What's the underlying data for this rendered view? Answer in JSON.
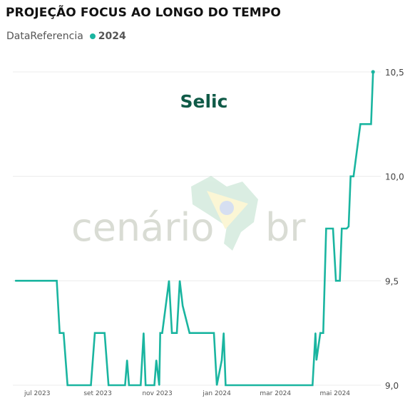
{
  "chart_data": {
    "type": "line",
    "title": "PROJEÇÃO FOCUS AO LONGO DO TEMPO",
    "legend": {
      "field": "DataReferencia",
      "position": "top-left"
    },
    "annotation": "Selic",
    "ylim": [
      9.0,
      10.5
    ],
    "y_ticks": [
      "9,0",
      "9,5",
      "10,0",
      "10,5"
    ],
    "x_ticks": [
      "jul 2023",
      "set 2023",
      "nov 2023",
      "jan 2024",
      "mar 2024",
      "mai 2024"
    ],
    "xlim": [
      "2023-06-06",
      "2024-06-14"
    ],
    "grid": true,
    "series": [
      {
        "name": "2024",
        "color": "#1ab5a0",
        "x": [
          "2023-06-09",
          "2023-07-21",
          "2023-07-24",
          "2023-07-28",
          "2023-08-01",
          "2023-08-25",
          "2023-08-29",
          "2023-09-08",
          "2023-09-12",
          "2023-09-29",
          "2023-10-01",
          "2023-10-03",
          "2023-10-06",
          "2023-10-15",
          "2023-10-18",
          "2023-10-20",
          "2023-10-29",
          "2023-10-31",
          "2023-11-03",
          "2023-11-04",
          "2023-11-06",
          "2023-11-13",
          "2023-11-16",
          "2023-11-21",
          "2023-11-24",
          "2023-11-27",
          "2023-12-04",
          "2023-12-05",
          "2023-12-08",
          "2023-12-11",
          "2023-12-15",
          "2023-12-18",
          "2023-12-20",
          "2023-12-29",
          "2024-01-01",
          "2024-01-06",
          "2024-01-08",
          "2024-01-10",
          "2024-01-14",
          "2024-01-17",
          "2024-04-08",
          "2024-04-11",
          "2024-04-12",
          "2024-04-16",
          "2024-04-19",
          "2024-04-22",
          "2024-04-29",
          "2024-05-02",
          "2024-05-06",
          "2024-05-08",
          "2024-05-10",
          "2024-05-13",
          "2024-05-15",
          "2024-05-17",
          "2024-05-20",
          "2024-05-27",
          "2024-06-07",
          "2024-06-09"
        ],
        "values": [
          9.5,
          9.5,
          9.25,
          9.25,
          9.0,
          9.0,
          9.25,
          9.25,
          9.0,
          9.0,
          9.12,
          9.0,
          9.0,
          9.0,
          9.25,
          9.0,
          9.0,
          9.12,
          9.0,
          9.25,
          9.25,
          9.5,
          9.25,
          9.25,
          9.5,
          9.38,
          9.25,
          9.25,
          9.25,
          9.25,
          9.25,
          9.25,
          9.25,
          9.25,
          9.0,
          9.12,
          9.25,
          9.0,
          9.0,
          9.0,
          9.0,
          9.25,
          9.12,
          9.25,
          9.25,
          9.75,
          9.75,
          9.5,
          9.5,
          9.75,
          9.75,
          9.75,
          9.76,
          10.0,
          10.0,
          10.25,
          10.25,
          10.5
        ]
      }
    ]
  },
  "watermark": {
    "brand_left": "cenário",
    "brand_right": "br"
  }
}
